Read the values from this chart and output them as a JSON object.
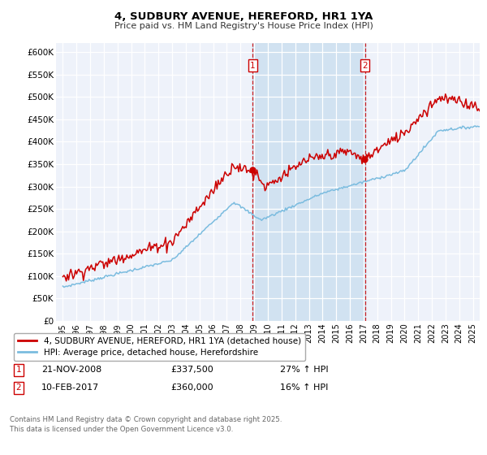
{
  "title1": "4, SUDBURY AVENUE, HEREFORD, HR1 1YA",
  "title2": "Price paid vs. HM Land Registry's House Price Index (HPI)",
  "ylabel_ticks": [
    "£0",
    "£50K",
    "£100K",
    "£150K",
    "£200K",
    "£250K",
    "£300K",
    "£350K",
    "£400K",
    "£450K",
    "£500K",
    "£550K",
    "£600K"
  ],
  "ytick_values": [
    0,
    50000,
    100000,
    150000,
    200000,
    250000,
    300000,
    350000,
    400000,
    450000,
    500000,
    550000,
    600000
  ],
  "xlim_start": 1994.5,
  "xlim_end": 2025.5,
  "ylim_min": 0,
  "ylim_max": 620000,
  "hpi_color": "#7bbcdf",
  "price_color": "#cc0000",
  "marker1_date": 2008.9,
  "marker2_date": 2017.1,
  "marker1_price": 337500,
  "marker2_price": 360000,
  "legend_line1": "4, SUDBURY AVENUE, HEREFORD, HR1 1YA (detached house)",
  "legend_line2": "HPI: Average price, detached house, Herefordshire",
  "note1_label": "1",
  "note1_date": "21-NOV-2008",
  "note1_price": "£337,500",
  "note1_hpi": "27% ↑ HPI",
  "note2_label": "2",
  "note2_date": "10-FEB-2017",
  "note2_price": "£360,000",
  "note2_hpi": "16% ↑ HPI",
  "footer": "Contains HM Land Registry data © Crown copyright and database right 2025.\nThis data is licensed under the Open Government Licence v3.0.",
  "background_color": "#ffffff",
  "plot_bg_color": "#eef2fa",
  "grid_color": "#ffffff",
  "span_color": "#cce0f0"
}
